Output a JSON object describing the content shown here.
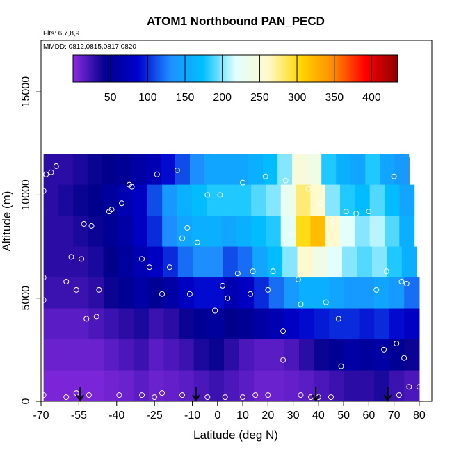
{
  "chart_data": {
    "type": "heatmap",
    "title": "ATOM1 Northbound PAN_PECD",
    "flights_note": "Flts: 6,7,8,9",
    "dates_note": "MMDD: 0812,0815,0817,0820",
    "xlabel": "Latitude (deg N)",
    "ylabel": "Altitude (m)",
    "xlim": [
      -70,
      85
    ],
    "ylim": [
      0,
      17500
    ],
    "x_ticks": [
      -70,
      -55,
      -40,
      -25,
      -10,
      0,
      10,
      20,
      30,
      40,
      50,
      60,
      70,
      80
    ],
    "x_tick_labels": [
      "-70",
      "-55",
      "-40",
      "-25",
      "-10",
      "0",
      "10",
      "20",
      "30",
      "40",
      "50",
      "60",
      "70",
      "80"
    ],
    "y_ticks": [
      0,
      5000,
      10000,
      15000
    ],
    "y_tick_labels": [
      "0",
      "5000",
      "10000",
      "15000"
    ],
    "colorbar": {
      "range": [
        0,
        435
      ],
      "ticks": [
        50,
        100,
        150,
        200,
        250,
        300,
        350,
        400
      ],
      "tick_labels": [
        "50",
        "100",
        "150",
        "200",
        "250",
        "300",
        "350",
        "400"
      ],
      "colors": [
        "#8a2be2",
        "#00008b",
        "#0000cd",
        "#1e90ff",
        "#00bfff",
        "#e0ffff",
        "#fffacd",
        "#ffd700",
        "#ff8c00",
        "#ff0000",
        "#8b0000"
      ]
    },
    "grid": false,
    "profile_latitudes": [
      -54.5,
      -8.5,
      39,
      67.5
    ],
    "field_rows": [
      {
        "alt": 11250,
        "x0": -69,
        "x1": 76,
        "values": [
          30,
          30,
          35,
          40,
          45,
          50,
          60,
          70,
          90,
          110,
          130,
          150,
          150,
          150,
          160,
          170,
          200,
          250,
          240,
          180,
          160,
          150,
          180,
          150,
          140
        ]
      },
      {
        "alt": 9750,
        "x0": -69,
        "x1": 78,
        "values": [
          30,
          35,
          40,
          45,
          55,
          70,
          80,
          110,
          140,
          160,
          170,
          180,
          180,
          180,
          190,
          200,
          230,
          280,
          260,
          200,
          180,
          170,
          190,
          170,
          150
        ]
      },
      {
        "alt": 8250,
        "x0": -69,
        "x1": 78,
        "values": [
          30,
          30,
          35,
          40,
          50,
          60,
          80,
          100,
          130,
          150,
          160,
          160,
          150,
          160,
          170,
          180,
          220,
          300,
          320,
          260,
          220,
          200,
          210,
          190,
          160
        ]
      },
      {
        "alt": 6750,
        "x0": -69,
        "x1": 79,
        "values": [
          30,
          30,
          30,
          35,
          45,
          55,
          70,
          80,
          100,
          120,
          130,
          130,
          110,
          120,
          150,
          170,
          200,
          260,
          240,
          220,
          200,
          190,
          200,
          180,
          160
        ]
      },
      {
        "alt": 5250,
        "x0": -69,
        "x1": 80,
        "values": [
          25,
          25,
          25,
          30,
          40,
          50,
          60,
          50,
          60,
          80,
          90,
          90,
          70,
          80,
          100,
          120,
          140,
          160,
          160,
          150,
          140,
          140,
          150,
          140,
          120
        ]
      },
      {
        "alt": 3750,
        "x0": -69,
        "x1": 80,
        "values": [
          15,
          15,
          15,
          20,
          25,
          30,
          35,
          25,
          30,
          40,
          50,
          55,
          45,
          50,
          60,
          70,
          80,
          90,
          95,
          100,
          100,
          95,
          100,
          90,
          80
        ]
      },
      {
        "alt": 2250,
        "x0": -69,
        "x1": 80,
        "values": [
          10,
          10,
          10,
          10,
          15,
          20,
          25,
          15,
          20,
          25,
          35,
          40,
          30,
          20,
          15,
          15,
          20,
          30,
          40,
          50,
          60,
          55,
          60,
          50,
          40
        ]
      },
      {
        "alt": 750,
        "x0": -69,
        "x1": 80,
        "values": [
          5,
          5,
          5,
          5,
          8,
          10,
          15,
          10,
          12,
          15,
          20,
          25,
          20,
          15,
          10,
          10,
          12,
          15,
          20,
          25,
          30,
          30,
          35,
          25,
          20
        ]
      }
    ],
    "points": [
      {
        "x": -69,
        "y": 10200
      },
      {
        "x": -68,
        "y": 11000
      },
      {
        "x": -66,
        "y": 11100
      },
      {
        "x": -64,
        "y": 11400
      },
      {
        "x": -69,
        "y": 6000
      },
      {
        "x": -69,
        "y": 4900
      },
      {
        "x": -60,
        "y": 5800
      },
      {
        "x": -58,
        "y": 7000
      },
      {
        "x": -56,
        "y": 5400
      },
      {
        "x": -54,
        "y": 6900
      },
      {
        "x": -53,
        "y": 8600
      },
      {
        "x": -50,
        "y": 8500
      },
      {
        "x": -47,
        "y": 5400
      },
      {
        "x": -43,
        "y": 9200
      },
      {
        "x": -42,
        "y": 9300
      },
      {
        "x": -38,
        "y": 9600
      },
      {
        "x": -35,
        "y": 10500
      },
      {
        "x": -34,
        "y": 10400
      },
      {
        "x": -30,
        "y": 6900
      },
      {
        "x": -27,
        "y": 6500
      },
      {
        "x": -24,
        "y": 11000
      },
      {
        "x": -22,
        "y": 5200
      },
      {
        "x": -19,
        "y": 6500
      },
      {
        "x": -16,
        "y": 11200
      },
      {
        "x": -14,
        "y": 7900
      },
      {
        "x": -12,
        "y": 8400
      },
      {
        "x": -11,
        "y": 5200
      },
      {
        "x": -8,
        "y": 7700
      },
      {
        "x": -5,
        "y": 12100
      },
      {
        "x": -4,
        "y": 10000
      },
      {
        "x": -1,
        "y": 4400
      },
      {
        "x": 1,
        "y": 10000
      },
      {
        "x": 2,
        "y": 5600
      },
      {
        "x": 4,
        "y": 5000
      },
      {
        "x": 8,
        "y": 6200
      },
      {
        "x": 10,
        "y": 10600
      },
      {
        "x": 13,
        "y": 5200
      },
      {
        "x": 14,
        "y": 6300
      },
      {
        "x": 19,
        "y": 10900
      },
      {
        "x": 20,
        "y": 5400
      },
      {
        "x": 22,
        "y": 6300
      },
      {
        "x": 27,
        "y": 10700
      },
      {
        "x": 29,
        "y": 8100
      },
      {
        "x": 32,
        "y": 5900
      },
      {
        "x": 33,
        "y": 4700
      },
      {
        "x": 36,
        "y": 10300
      },
      {
        "x": 41,
        "y": 9600
      },
      {
        "x": 43,
        "y": 4800
      },
      {
        "x": 46,
        "y": 8700
      },
      {
        "x": 48,
        "y": 4000
      },
      {
        "x": 51,
        "y": 9200
      },
      {
        "x": 55,
        "y": 9100
      },
      {
        "x": 60,
        "y": 9200
      },
      {
        "x": 63,
        "y": 5400
      },
      {
        "x": 67,
        "y": 6300
      },
      {
        "x": 70,
        "y": 10900
      },
      {
        "x": 73,
        "y": 5800
      },
      {
        "x": 75,
        "y": 5700
      },
      {
        "x": 77,
        "y": 11900
      },
      {
        "x": 79,
        "y": 10600
      },
      {
        "x": -69,
        "y": 300
      },
      {
        "x": -60,
        "y": 200
      },
      {
        "x": -56,
        "y": 400
      },
      {
        "x": -51,
        "y": 300
      },
      {
        "x": -48,
        "y": 4100
      },
      {
        "x": -52,
        "y": 4000
      },
      {
        "x": -39,
        "y": 300
      },
      {
        "x": -30,
        "y": 300
      },
      {
        "x": -25,
        "y": 200
      },
      {
        "x": -22,
        "y": 400
      },
      {
        "x": -14,
        "y": 300
      },
      {
        "x": -4,
        "y": 200
      },
      {
        "x": 3,
        "y": 200
      },
      {
        "x": 10,
        "y": 200
      },
      {
        "x": 15,
        "y": 300
      },
      {
        "x": 20,
        "y": 300
      },
      {
        "x": 26,
        "y": 3400
      },
      {
        "x": 26,
        "y": 2000
      },
      {
        "x": 33,
        "y": 300
      },
      {
        "x": 37,
        "y": 200
      },
      {
        "x": 40,
        "y": 200
      },
      {
        "x": 45,
        "y": 200
      },
      {
        "x": 49,
        "y": 1700
      },
      {
        "x": 66,
        "y": 2500
      },
      {
        "x": 71,
        "y": 2800
      },
      {
        "x": 74,
        "y": 2100
      },
      {
        "x": 76,
        "y": 700
      },
      {
        "x": 80,
        "y": 700
      },
      {
        "x": 72,
        "y": 300
      }
    ]
  }
}
